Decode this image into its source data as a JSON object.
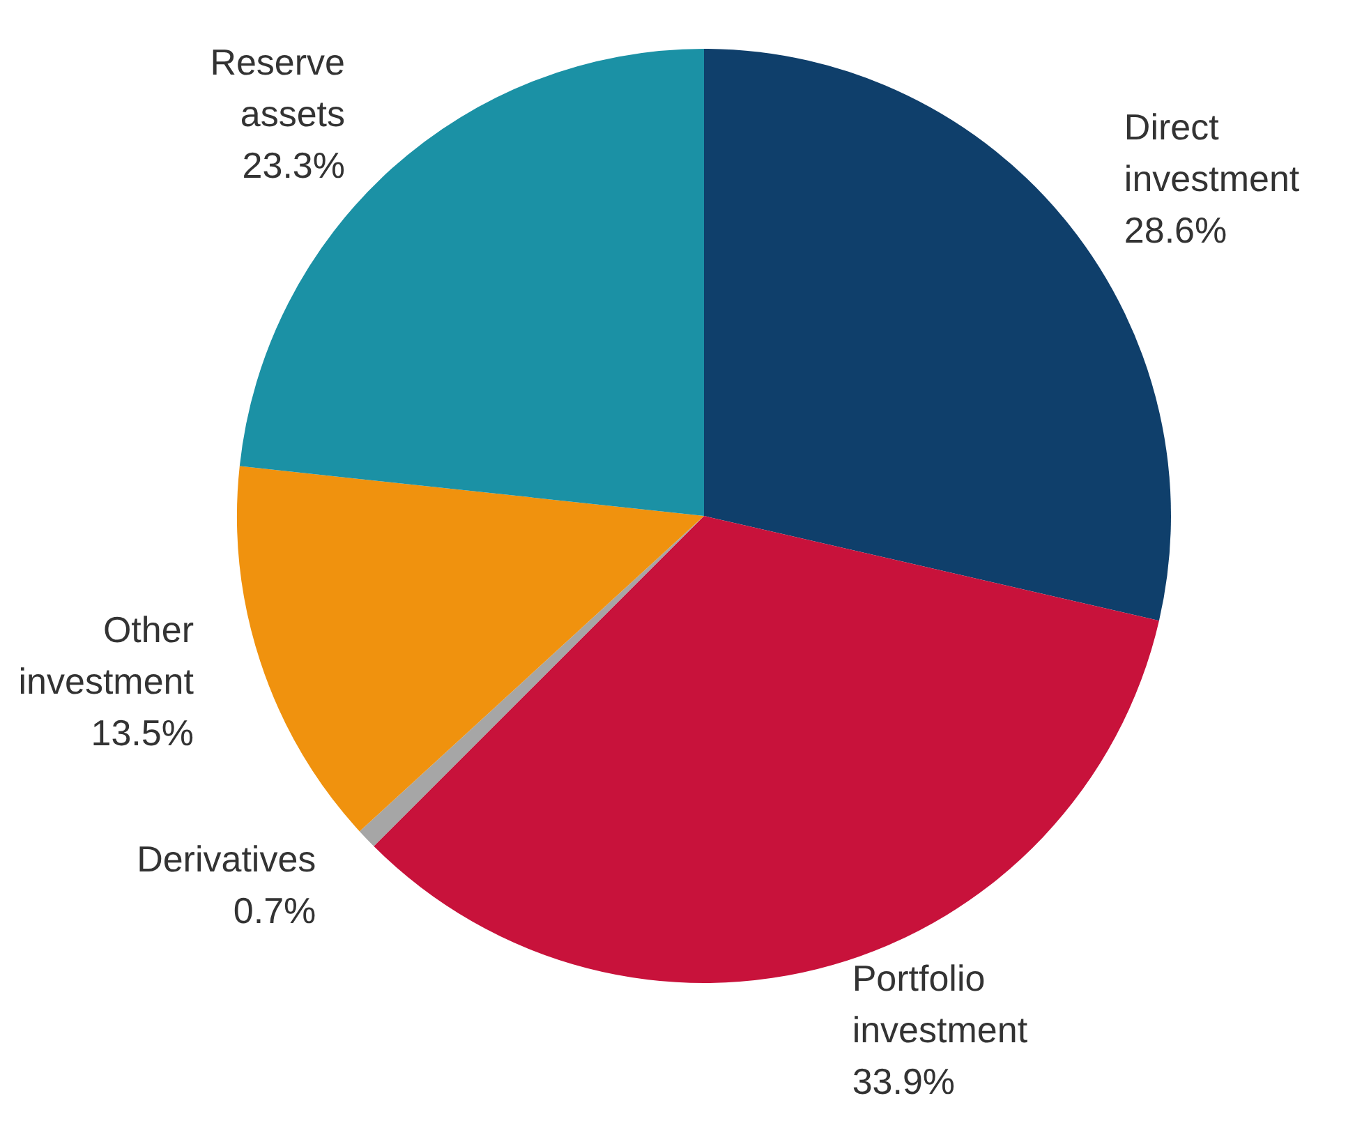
{
  "chart_data": {
    "type": "pie",
    "categories": [
      "Direct investment",
      "Portfolio investment",
      "Derivatives",
      "Other investment",
      "Reserve assets"
    ],
    "values": [
      28.6,
      33.9,
      0.7,
      13.5,
      23.3
    ],
    "colors": [
      "#0f3f6b",
      "#c8123b",
      "#a6a6a6",
      "#f0920e",
      "#1b91a5"
    ],
    "value_labels": [
      "28.6%",
      "33.9%",
      "0.7%",
      "13.5%",
      "23.3%"
    ]
  }
}
